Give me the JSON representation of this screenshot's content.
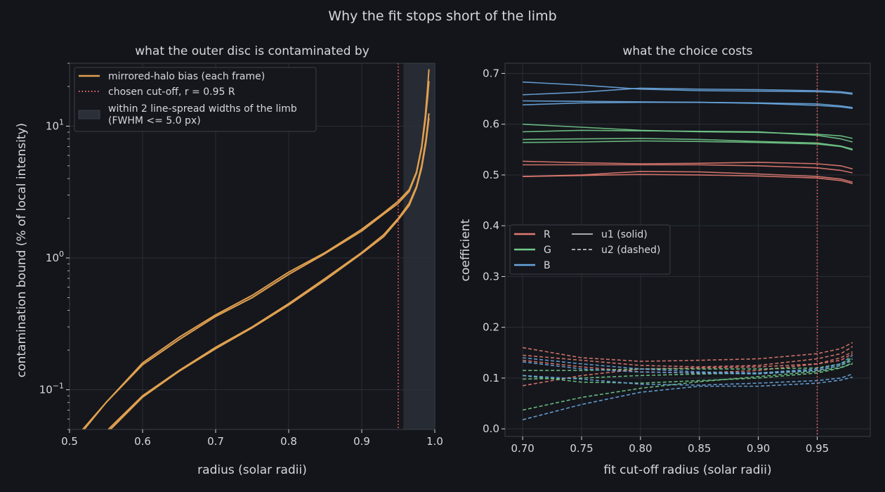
{
  "suptitle": "Why the fit stops short of the limb",
  "colors": {
    "background": "#13151a",
    "axes_face": "#15171c",
    "spine": "#3a3f47",
    "grid": "#2a2e35",
    "text": "#d6d8dc",
    "halo": "#e0a050",
    "cutoff": "#ff6b6b",
    "shade": "#2a2f38",
    "R": "#e07a70",
    "G": "#72c98a",
    "B": "#6aa6e0"
  },
  "chart_data": [
    {
      "type": "line",
      "title": "what the outer disc is contaminated by",
      "xlabel": "radius (solar radii)",
      "ylabel": "contamination bound (% of local intensity)",
      "xlim": [
        0.5,
        1.0
      ],
      "ylim": [
        0.05,
        30
      ],
      "yscale": "log",
      "grid": true,
      "xticks": [
        0.5,
        0.6,
        0.7,
        0.8,
        0.9,
        1.0
      ],
      "xtick_labels": [
        "0.5",
        "0.6",
        "0.7",
        "0.8",
        "0.9",
        "1.0"
      ],
      "yticks": [
        0.1,
        1,
        10
      ],
      "ytick_labels": [
        "10",
        "10",
        "10"
      ],
      "ytick_exponents": [
        "−1",
        "0",
        "1"
      ],
      "legend": {
        "position": "top-left",
        "entries": [
          {
            "label": "mirrored-halo bias (each frame)",
            "style": "line"
          },
          {
            "label": "chosen cut-off, r = 0.95 R",
            "style": "dotted"
          },
          {
            "label": "within 2 line-spread widths of the limb",
            "label2": "(FWHM <= 5.0 px)",
            "style": "patch"
          }
        ]
      },
      "cutoff_x": 0.95,
      "shaded_band": [
        0.957,
        1.0
      ],
      "series": [
        {
          "x": [
            0.518,
            0.55,
            0.6,
            0.65,
            0.7,
            0.75,
            0.8,
            0.85,
            0.9,
            0.93,
            0.95,
            0.965,
            0.975,
            0.982,
            0.987,
            0.99,
            0.992
          ],
          "values": [
            0.05,
            0.08,
            0.16,
            0.25,
            0.37,
            0.52,
            0.78,
            1.1,
            1.65,
            2.2,
            2.7,
            3.3,
            4.5,
            7.0,
            12.0,
            19.0,
            27.0
          ]
        },
        {
          "x": [
            0.52,
            0.55,
            0.6,
            0.65,
            0.7,
            0.75,
            0.8,
            0.85,
            0.9,
            0.93,
            0.95,
            0.965,
            0.975,
            0.982,
            0.987,
            0.99,
            0.992
          ],
          "values": [
            0.05,
            0.08,
            0.155,
            0.24,
            0.36,
            0.5,
            0.75,
            1.08,
            1.6,
            2.15,
            2.6,
            3.2,
            4.4,
            6.8,
            11.0,
            16.0,
            22.0
          ]
        },
        {
          "x": [
            0.553,
            0.6,
            0.65,
            0.7,
            0.75,
            0.8,
            0.85,
            0.9,
            0.93,
            0.95,
            0.965,
            0.975,
            0.982,
            0.988,
            0.992
          ],
          "values": [
            0.05,
            0.09,
            0.14,
            0.21,
            0.3,
            0.45,
            0.7,
            1.1,
            1.5,
            2.0,
            2.6,
            3.5,
            5.0,
            8.0,
            12.5
          ]
        },
        {
          "x": [
            0.556,
            0.6,
            0.65,
            0.7,
            0.75,
            0.8,
            0.85,
            0.9,
            0.93,
            0.95,
            0.965,
            0.975,
            0.982,
            0.988,
            0.992
          ],
          "values": [
            0.05,
            0.088,
            0.138,
            0.205,
            0.295,
            0.44,
            0.68,
            1.08,
            1.45,
            1.95,
            2.5,
            3.4,
            4.8,
            7.5,
            11.5
          ]
        }
      ]
    },
    {
      "type": "line",
      "title": "what the choice costs",
      "xlabel": "fit cut-off radius (solar radii)",
      "ylabel": "coefficient",
      "xlim": [
        0.685,
        0.995
      ],
      "ylim": [
        -0.015,
        0.72
      ],
      "grid": true,
      "xticks": [
        0.7,
        0.75,
        0.8,
        0.85,
        0.9,
        0.95
      ],
      "xtick_labels": [
        "0.70",
        "0.75",
        "0.80",
        "0.85",
        "0.90",
        "0.95"
      ],
      "yticks": [
        0.0,
        0.1,
        0.2,
        0.3,
        0.4,
        0.5,
        0.6,
        0.7
      ],
      "ytick_labels": [
        "0.0",
        "0.1",
        "0.2",
        "0.3",
        "0.4",
        "0.5",
        "0.6",
        "0.7"
      ],
      "legend": {
        "position": "center-left",
        "entries": [
          {
            "label": "R",
            "style": "line",
            "color_key": "R"
          },
          {
            "label": "G",
            "style": "line",
            "color_key": "G"
          },
          {
            "label": "B",
            "style": "line",
            "color_key": "B"
          },
          {
            "label": "u1 (solid)",
            "style": "line"
          },
          {
            "label": "u2 (dashed)",
            "style": "dashed"
          }
        ]
      },
      "cutoff_x": 0.95,
      "x": [
        0.7,
        0.75,
        0.8,
        0.85,
        0.9,
        0.95,
        0.97,
        0.98
      ],
      "series": [
        {
          "channel": "R",
          "coef": "u1",
          "values": [
            0.527,
            0.524,
            0.522,
            0.523,
            0.525,
            0.522,
            0.518,
            0.512
          ]
        },
        {
          "channel": "R",
          "coef": "u1",
          "values": [
            0.52,
            0.52,
            0.52,
            0.52,
            0.518,
            0.514,
            0.509,
            0.504
          ]
        },
        {
          "channel": "R",
          "coef": "u1",
          "values": [
            0.497,
            0.5,
            0.507,
            0.506,
            0.502,
            0.497,
            0.492,
            0.486
          ]
        },
        {
          "channel": "R",
          "coef": "u1",
          "values": [
            0.497,
            0.499,
            0.501,
            0.5,
            0.498,
            0.494,
            0.489,
            0.483
          ]
        },
        {
          "channel": "G",
          "coef": "u1",
          "values": [
            0.6,
            0.594,
            0.588,
            0.585,
            0.584,
            0.58,
            0.577,
            0.572
          ]
        },
        {
          "channel": "G",
          "coef": "u1",
          "values": [
            0.585,
            0.588,
            0.587,
            0.586,
            0.585,
            0.578,
            0.571,
            0.565
          ]
        },
        {
          "channel": "G",
          "coef": "u1",
          "values": [
            0.57,
            0.571,
            0.572,
            0.57,
            0.566,
            0.563,
            0.557,
            0.551
          ]
        },
        {
          "channel": "G",
          "coef": "u1",
          "values": [
            0.564,
            0.565,
            0.567,
            0.566,
            0.564,
            0.561,
            0.556,
            0.549
          ]
        },
        {
          "channel": "B",
          "coef": "u1",
          "values": [
            0.683,
            0.677,
            0.669,
            0.666,
            0.665,
            0.664,
            0.662,
            0.659
          ]
        },
        {
          "channel": "B",
          "coef": "u1",
          "values": [
            0.658,
            0.663,
            0.671,
            0.669,
            0.668,
            0.666,
            0.664,
            0.661
          ]
        },
        {
          "channel": "B",
          "coef": "u1",
          "values": [
            0.646,
            0.645,
            0.644,
            0.643,
            0.642,
            0.64,
            0.636,
            0.633
          ]
        },
        {
          "channel": "B",
          "coef": "u1",
          "values": [
            0.638,
            0.642,
            0.643,
            0.643,
            0.641,
            0.637,
            0.634,
            0.631
          ]
        },
        {
          "channel": "R",
          "coef": "u2",
          "values": [
            0.16,
            0.14,
            0.133,
            0.135,
            0.138,
            0.148,
            0.158,
            0.17
          ]
        },
        {
          "channel": "R",
          "coef": "u2",
          "values": [
            0.145,
            0.135,
            0.125,
            0.122,
            0.125,
            0.138,
            0.148,
            0.162
          ]
        },
        {
          "channel": "R",
          "coef": "u2",
          "values": [
            0.135,
            0.122,
            0.112,
            0.11,
            0.115,
            0.128,
            0.14,
            0.152
          ]
        },
        {
          "channel": "R",
          "coef": "u2",
          "values": [
            0.085,
            0.105,
            0.118,
            0.12,
            0.122,
            0.128,
            0.135,
            0.148
          ]
        },
        {
          "channel": "G",
          "coef": "u2",
          "values": [
            0.115,
            0.115,
            0.118,
            0.118,
            0.118,
            0.12,
            0.128,
            0.14
          ]
        },
        {
          "channel": "G",
          "coef": "u2",
          "values": [
            0.105,
            0.092,
            0.09,
            0.095,
            0.1,
            0.11,
            0.12,
            0.13
          ]
        },
        {
          "channel": "G",
          "coef": "u2",
          "values": [
            0.098,
            0.1,
            0.105,
            0.108,
            0.11,
            0.115,
            0.125,
            0.135
          ]
        },
        {
          "channel": "G",
          "coef": "u2",
          "values": [
            0.037,
            0.062,
            0.08,
            0.093,
            0.103,
            0.113,
            0.121,
            0.128
          ]
        },
        {
          "channel": "B",
          "coef": "u2",
          "values": [
            0.14,
            0.128,
            0.118,
            0.112,
            0.11,
            0.118,
            0.128,
            0.145
          ]
        },
        {
          "channel": "B",
          "coef": "u2",
          "values": [
            0.132,
            0.118,
            0.112,
            0.11,
            0.108,
            0.115,
            0.125,
            0.138
          ]
        },
        {
          "channel": "B",
          "coef": "u2",
          "values": [
            0.105,
            0.098,
            0.088,
            0.086,
            0.09,
            0.095,
            0.1,
            0.108
          ]
        },
        {
          "channel": "B",
          "coef": "u2",
          "values": [
            0.018,
            0.048,
            0.072,
            0.084,
            0.084,
            0.09,
            0.096,
            0.102
          ]
        }
      ]
    }
  ]
}
